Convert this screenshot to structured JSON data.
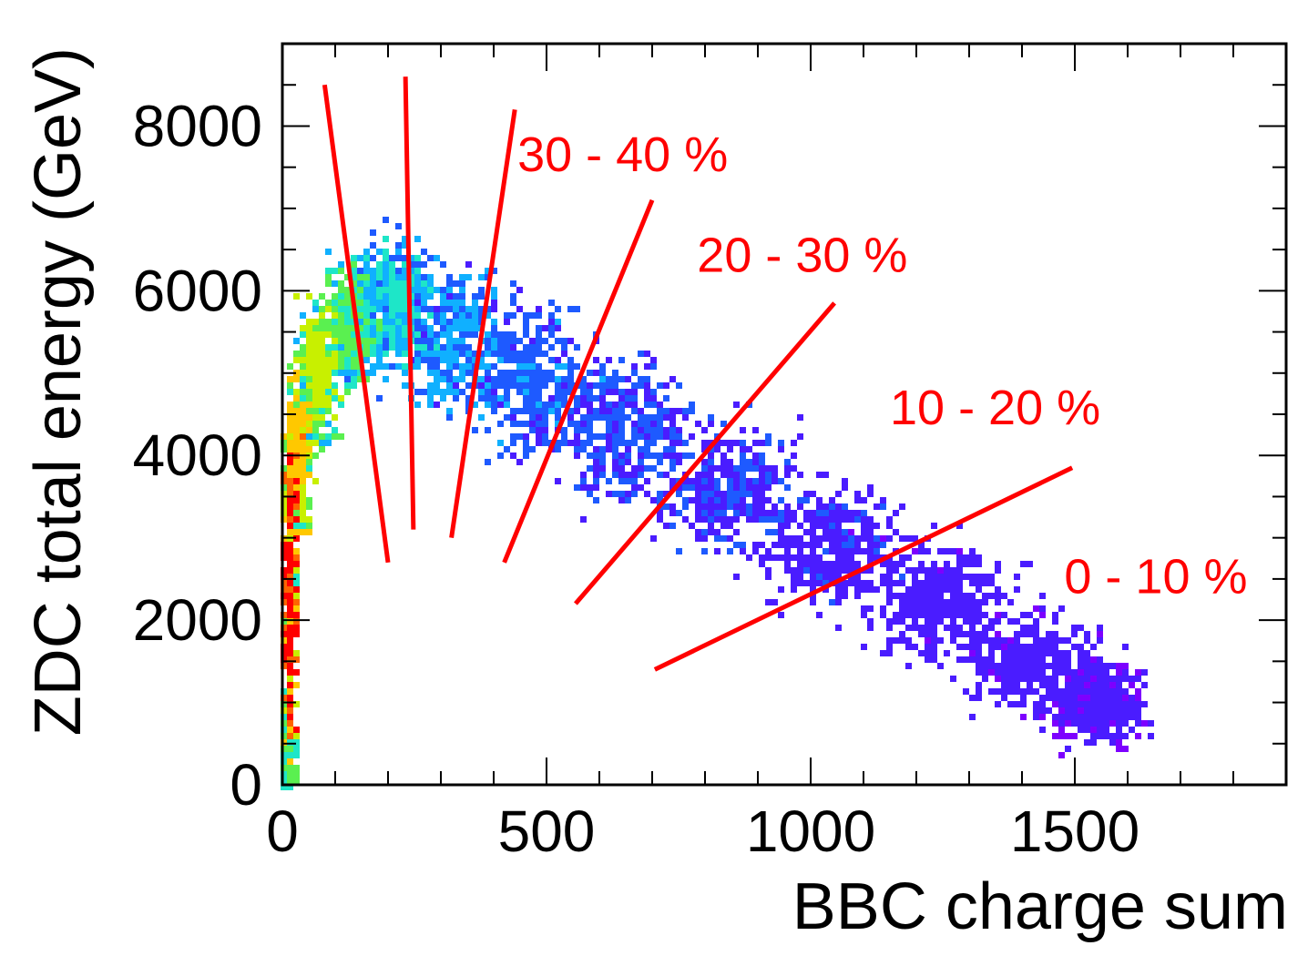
{
  "chart_data": {
    "type": "heatmap",
    "title": "",
    "xlabel": "BBC charge sum",
    "ylabel": "ZDC total energy (GeV)",
    "xlim": [
      0,
      1900
    ],
    "ylim": [
      0,
      9000
    ],
    "x_ticks": [
      0,
      500,
      1000,
      1500
    ],
    "y_ticks": [
      0,
      2000,
      4000,
      6000,
      8000
    ],
    "x_tick_labels": [
      "0",
      "500",
      "1000",
      "1500"
    ],
    "y_tick_labels": [
      "0",
      "2000",
      "4000",
      "6000",
      "8000"
    ],
    "grid": false,
    "colormap": [
      "#7d00ff",
      "#4a1cff",
      "#1e5aff",
      "#10b0ff",
      "#1ee6c8",
      "#5af050",
      "#c8f000",
      "#ffc800",
      "#ff6400",
      "#ff0000"
    ],
    "density_ridge": [
      {
        "x": 10,
        "y": 300,
        "w": 12,
        "h": 600,
        "intensity": 0.45
      },
      {
        "x": 15,
        "y": 2300,
        "w": 14,
        "h": 1700,
        "intensity": 0.85
      },
      {
        "x": 30,
        "y": 4000,
        "w": 22,
        "h": 900,
        "intensity": 0.7
      },
      {
        "x": 70,
        "y": 5000,
        "w": 35,
        "h": 800,
        "intensity": 0.6
      },
      {
        "x": 130,
        "y": 5600,
        "w": 50,
        "h": 700,
        "intensity": 0.5
      },
      {
        "x": 220,
        "y": 5800,
        "w": 60,
        "h": 750,
        "intensity": 0.4
      },
      {
        "x": 330,
        "y": 5400,
        "w": 80,
        "h": 800,
        "intensity": 0.33
      },
      {
        "x": 480,
        "y": 4900,
        "w": 100,
        "h": 850,
        "intensity": 0.27
      },
      {
        "x": 650,
        "y": 4300,
        "w": 110,
        "h": 800,
        "intensity": 0.23
      },
      {
        "x": 850,
        "y": 3600,
        "w": 120,
        "h": 750,
        "intensity": 0.2
      },
      {
        "x": 1050,
        "y": 2900,
        "w": 120,
        "h": 700,
        "intensity": 0.18
      },
      {
        "x": 1250,
        "y": 2200,
        "w": 120,
        "h": 650,
        "intensity": 0.17
      },
      {
        "x": 1420,
        "y": 1500,
        "w": 110,
        "h": 600,
        "intensity": 0.16
      },
      {
        "x": 1550,
        "y": 1000,
        "w": 80,
        "h": 500,
        "intensity": 0.13
      }
    ],
    "cut_lines": [
      {
        "x1": 80,
        "y1": 8500,
        "x2": 200,
        "y2": 2700
      },
      {
        "x1": 233,
        "y1": 8600,
        "x2": 248,
        "y2": 3100
      },
      {
        "x1": 440,
        "y1": 8200,
        "x2": 320,
        "y2": 3000
      },
      {
        "x1": 700,
        "y1": 7100,
        "x2": 420,
        "y2": 2700
      },
      {
        "x1": 1045,
        "y1": 5850,
        "x2": 555,
        "y2": 2200
      },
      {
        "x1": 1495,
        "y1": 3850,
        "x2": 705,
        "y2": 1400
      }
    ],
    "cut_color": "#ff0000",
    "annotations": [
      {
        "text": "30 - 40 %",
        "x": 445,
        "y": 7450
      },
      {
        "text": "20 - 30 %",
        "x": 785,
        "y": 6230
      },
      {
        "text": "10 - 20 %",
        "x": 1150,
        "y": 4380
      },
      {
        "text": "0 - 10 %",
        "x": 1480,
        "y": 2330
      }
    ],
    "annotation_color": "#ff0000"
  }
}
